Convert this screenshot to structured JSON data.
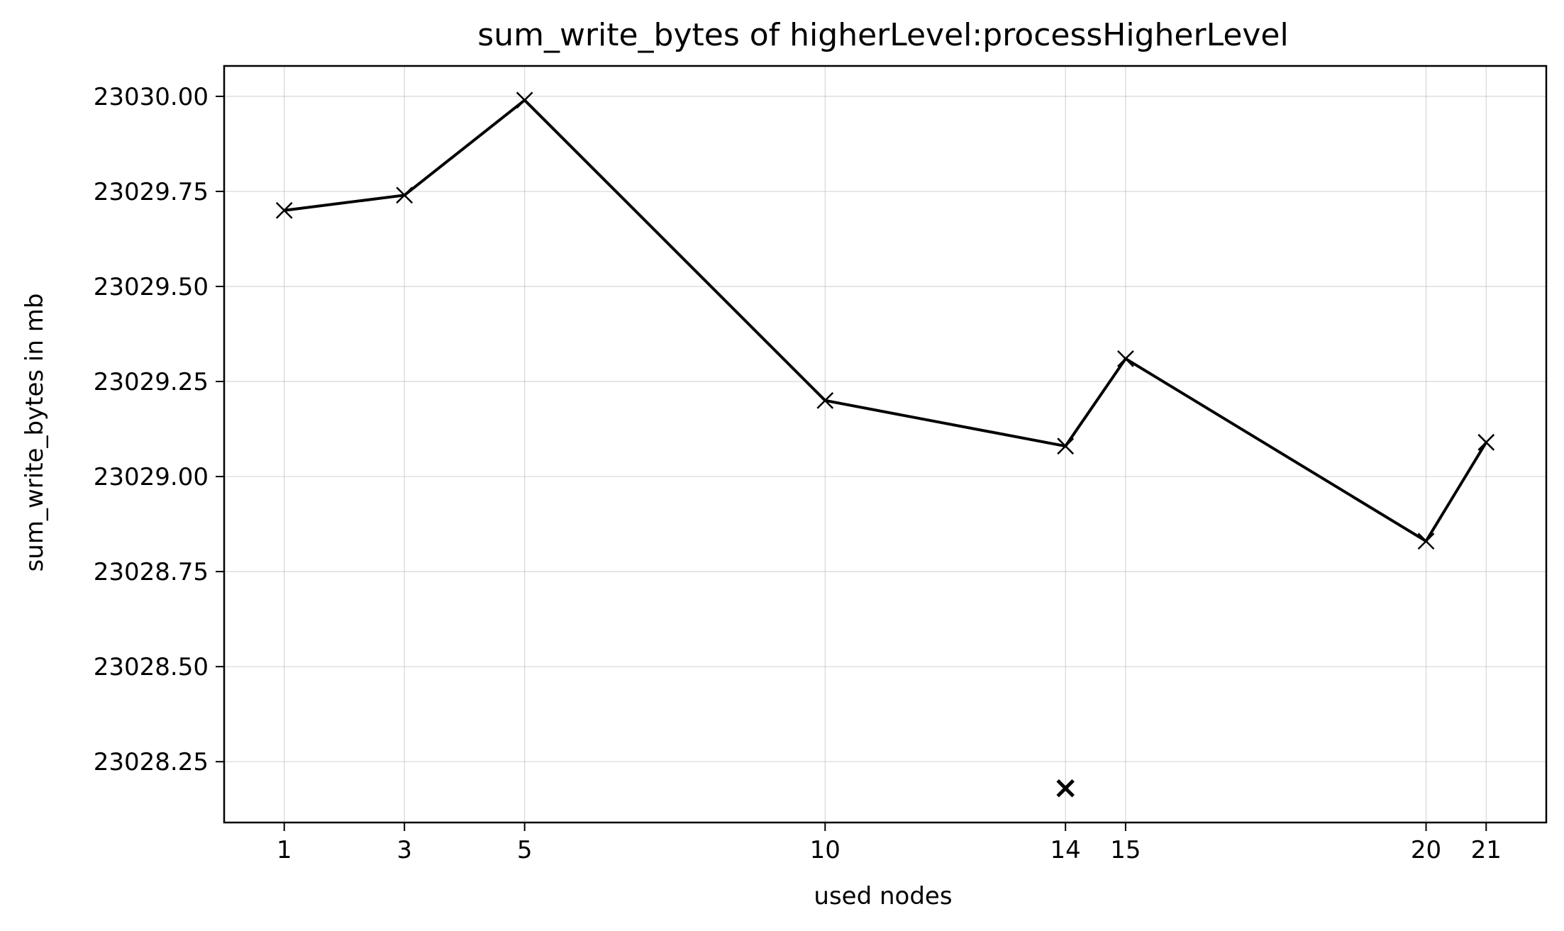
{
  "chart_data": {
    "type": "line",
    "title": "sum_write_bytes of higherLevel:processHigherLevel",
    "xlabel": "used nodes",
    "ylabel": "sum_write_bytes in mb",
    "x_ticks": [
      1,
      3,
      5,
      10,
      14,
      15,
      20,
      21
    ],
    "y_ticks": [
      "23028.25",
      "23028.50",
      "23028.75",
      "23029.00",
      "23029.25",
      "23029.50",
      "23029.75",
      "23030.00"
    ],
    "xlim": [
      0,
      22
    ],
    "ylim": [
      23028.09,
      23030.08
    ],
    "grid": true,
    "series": [
      {
        "color": "#000000",
        "marker": "x",
        "x": [
          1,
          3,
          5,
          10,
          14,
          15,
          20,
          21
        ],
        "y": [
          23029.7,
          23029.74,
          23029.99,
          23029.2,
          23029.08,
          23029.31,
          23028.83,
          23029.09
        ]
      }
    ],
    "extra_points": [
      {
        "x": 14,
        "y": 23028.18,
        "marker": "x",
        "color": "#000000"
      }
    ]
  }
}
